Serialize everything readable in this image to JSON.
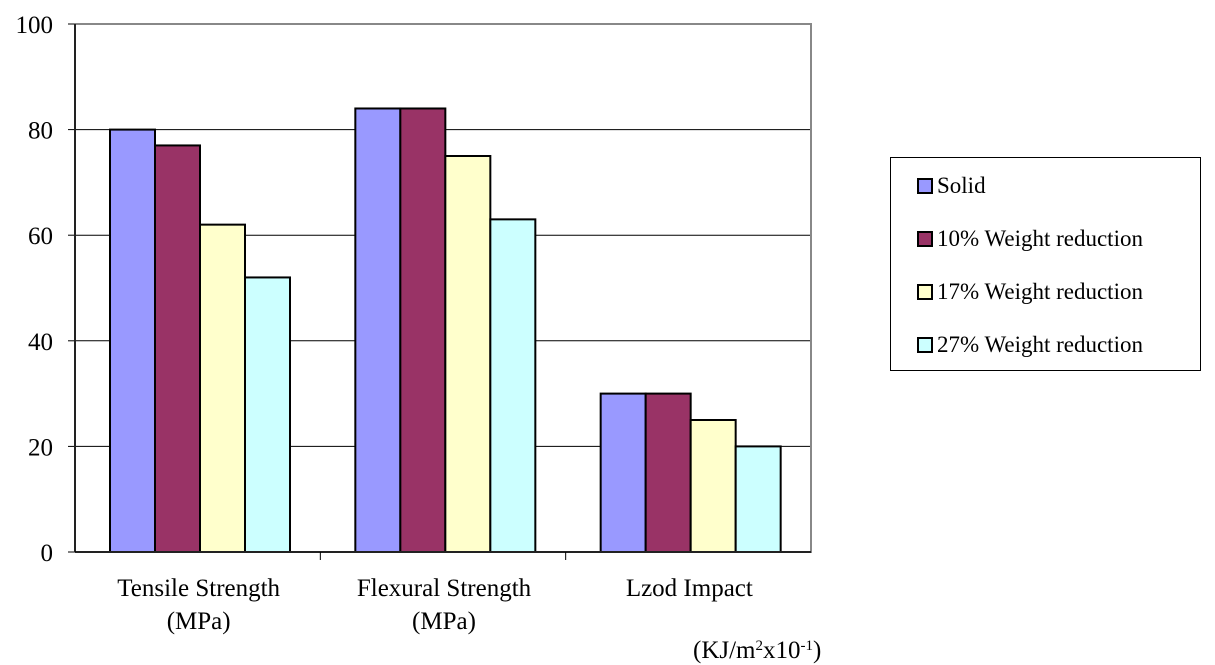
{
  "chart_data": {
    "type": "bar",
    "categories": [
      [
        "Tensile Strength",
        "(MPa)"
      ],
      [
        "Flexural Strength",
        "(MPa)"
      ],
      [
        "Lzod Impact"
      ]
    ],
    "series": [
      {
        "name": "Solid",
        "color": "#9999ff",
        "values": [
          80,
          84,
          30
        ]
      },
      {
        "name": "10% Weight reduction",
        "color": "#993366",
        "values": [
          77,
          84,
          30
        ]
      },
      {
        "name": "17% Weight reduction",
        "color": "#ffffcc",
        "values": [
          62,
          75,
          25
        ]
      },
      {
        "name": "27% Weight reduction",
        "color": "#ccffff",
        "values": [
          52,
          63,
          20
        ]
      }
    ],
    "ylim": [
      0,
      100
    ],
    "yticks": [
      0,
      20,
      40,
      60,
      80,
      100
    ],
    "grid": true,
    "legend_position": "right",
    "unit_note": {
      "prefix": "(KJ/m",
      "exp1": "2",
      "mid": "x10",
      "exp2": "-1",
      "suffix": ")"
    }
  }
}
